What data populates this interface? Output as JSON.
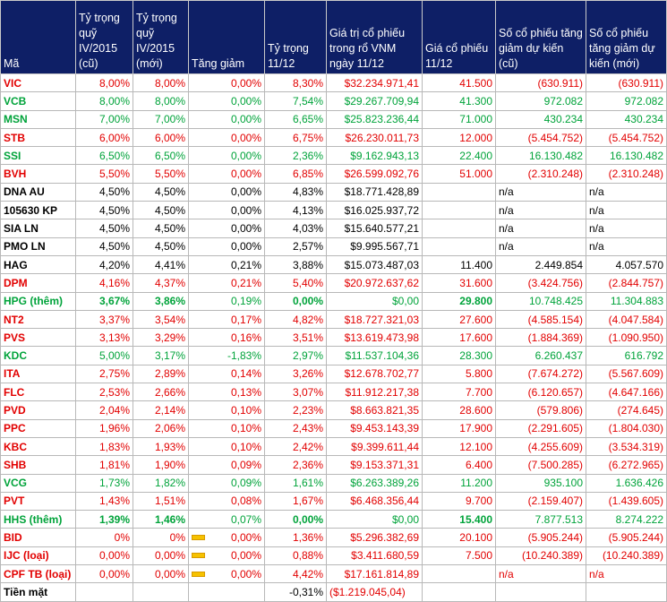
{
  "headers": [
    "Mã",
    "Tỷ trọng quỹ IV/2015 (cũ)",
    "Tỷ trọng quỹ IV/2015 (mới)",
    "Tăng giảm",
    "Tỷ trọng 11/12",
    "Giá trị cổ phiếu trong rổ VNM ngày 11/12",
    "Giá cổ phiếu 11/12",
    "Số cổ phiếu tăng giảm dự kiến (cũ)",
    "Số cổ phiếu tăng giảm dự kiến (mới)"
  ],
  "colors": {
    "header_bg": "#0e1f66",
    "red": "#e20000",
    "green": "#00a33a",
    "bar": "#f6c200"
  },
  "rows": [
    {
      "c": [
        "VIC",
        "8,00%",
        "8,00%",
        "0,00%",
        "8,30%",
        "$32.234.971,41",
        "41.500",
        "(630.911)",
        "(630.911)"
      ],
      "color": "red"
    },
    {
      "c": [
        "VCB",
        "8,00%",
        "8,00%",
        "0,00%",
        "7,54%",
        "$29.267.709,94",
        "41.300",
        "972.082",
        "972.082"
      ],
      "color": "green"
    },
    {
      "c": [
        "MSN",
        "7,00%",
        "7,00%",
        "0,00%",
        "6,65%",
        "$25.823.236,44",
        "71.000",
        "430.234",
        "430.234"
      ],
      "color": "green"
    },
    {
      "c": [
        "STB",
        "6,00%",
        "6,00%",
        "0,00%",
        "6,75%",
        "$26.230.011,73",
        "12.000",
        "(5.454.752)",
        "(5.454.752)"
      ],
      "color": "red"
    },
    {
      "c": [
        "SSI",
        "6,50%",
        "6,50%",
        "0,00%",
        "2,36%",
        "$9.162.943,13",
        "22.400",
        "16.130.482",
        "16.130.482"
      ],
      "color": "green"
    },
    {
      "c": [
        "BVH",
        "5,50%",
        "5,50%",
        "0,00%",
        "6,85%",
        "$26.599.092,76",
        "51.000",
        "(2.310.248)",
        "(2.310.248)"
      ],
      "color": "red"
    },
    {
      "c": [
        "DNA AU",
        "4,50%",
        "4,50%",
        "0,00%",
        "4,83%",
        "$18.771.428,89",
        "",
        "n/a",
        "n/a"
      ],
      "color": "black"
    },
    {
      "c": [
        "105630 KP",
        "4,50%",
        "4,50%",
        "0,00%",
        "4,13%",
        "$16.025.937,72",
        "",
        "n/a",
        "n/a"
      ],
      "color": "black"
    },
    {
      "c": [
        "SIA LN",
        "4,50%",
        "4,50%",
        "0,00%",
        "4,03%",
        "$15.640.577,21",
        "",
        "n/a",
        "n/a"
      ],
      "color": "black"
    },
    {
      "c": [
        "PMO LN",
        "4,50%",
        "4,50%",
        "0,00%",
        "2,57%",
        "$9.995.567,71",
        "",
        "n/a",
        "n/a"
      ],
      "color": "black"
    },
    {
      "c": [
        "HAG",
        "4,20%",
        "4,41%",
        "0,21%",
        "3,88%",
        "$15.073.487,03",
        "11.400",
        "2.449.854",
        "4.057.570"
      ],
      "color": "black"
    },
    {
      "c": [
        "DPM",
        "4,16%",
        "4,37%",
        "0,21%",
        "5,40%",
        "$20.972.637,62",
        "31.600",
        "(3.424.756)",
        "(2.844.757)"
      ],
      "color": "red"
    },
    {
      "c": [
        "HPG (thêm)",
        "3,67%",
        "3,86%",
        "0,19%",
        "0,00%",
        "$0,00",
        "29.800",
        "10.748.425",
        "11.304.883"
      ],
      "color": "green",
      "bold": [
        0,
        1,
        2,
        4,
        6
      ]
    },
    {
      "c": [
        "NT2",
        "3,37%",
        "3,54%",
        "0,17%",
        "4,82%",
        "$18.727.321,03",
        "27.600",
        "(4.585.154)",
        "(4.047.584)"
      ],
      "color": "red"
    },
    {
      "c": [
        "PVS",
        "3,13%",
        "3,29%",
        "0,16%",
        "3,51%",
        "$13.619.473,98",
        "17.600",
        "(1.884.369)",
        "(1.090.950)"
      ],
      "color": "red"
    },
    {
      "c": [
        "KDC",
        "5,00%",
        "3,17%",
        "-1,83%",
        "2,97%",
        "$11.537.104,36",
        "28.300",
        "6.260.437",
        "616.792"
      ],
      "color": "green"
    },
    {
      "c": [
        "ITA",
        "2,75%",
        "2,89%",
        "0,14%",
        "3,26%",
        "$12.678.702,77",
        "5.800",
        "(7.674.272)",
        "(5.567.609)"
      ],
      "color": "red"
    },
    {
      "c": [
        "FLC",
        "2,53%",
        "2,66%",
        "0,13%",
        "3,07%",
        "$11.912.217,38",
        "7.700",
        "(6.120.657)",
        "(4.647.166)"
      ],
      "color": "red"
    },
    {
      "c": [
        "PVD",
        "2,04%",
        "2,14%",
        "0,10%",
        "2,23%",
        "$8.663.821,35",
        "28.600",
        "(579.806)",
        "(274.645)"
      ],
      "color": "red"
    },
    {
      "c": [
        "PPC",
        "1,96%",
        "2,06%",
        "0,10%",
        "2,43%",
        "$9.453.143,39",
        "17.900",
        "(2.291.605)",
        "(1.804.030)"
      ],
      "color": "red"
    },
    {
      "c": [
        "KBC",
        "1,83%",
        "1,93%",
        "0,10%",
        "2,42%",
        "$9.399.611,44",
        "12.100",
        "(4.255.609)",
        "(3.534.319)"
      ],
      "color": "red"
    },
    {
      "c": [
        "SHB",
        "1,81%",
        "1,90%",
        "0,09%",
        "2,36%",
        "$9.153.371,31",
        "6.400",
        "(7.500.285)",
        "(6.272.965)"
      ],
      "color": "red"
    },
    {
      "c": [
        "VCG",
        "1,73%",
        "1,82%",
        "0,09%",
        "1,61%",
        "$6.263.389,26",
        "11.200",
        "935.100",
        "1.636.426"
      ],
      "color": "green"
    },
    {
      "c": [
        "PVT",
        "1,43%",
        "1,51%",
        "0,08%",
        "1,67%",
        "$6.468.356,44",
        "9.700",
        "(2.159.407)",
        "(1.439.605)"
      ],
      "color": "red"
    },
    {
      "c": [
        "HHS (thêm)",
        "1,39%",
        "1,46%",
        "0,07%",
        "0,00%",
        "$0,00",
        "15.400",
        "7.877.513",
        "8.274.222"
      ],
      "color": "green",
      "bold": [
        0,
        1,
        2,
        4,
        6
      ]
    },
    {
      "c": [
        "BID",
        "0%",
        "0%",
        "0,00%",
        "1,36%",
        "$5.296.382,69",
        "20.100",
        "(5.905.244)",
        "(5.905.244)"
      ],
      "color": "red",
      "bar": true
    },
    {
      "c": [
        "IJC (loại)",
        "0,00%",
        "0,00%",
        "0,00%",
        "0,88%",
        "$3.411.680,59",
        "7.500",
        "(10.240.389)",
        "(10.240.389)"
      ],
      "color": "red",
      "bar": true
    },
    {
      "c": [
        "CPF TB (loại)",
        "0,00%",
        "0,00%",
        "0,00%",
        "4,42%",
        "$17.161.814,89",
        "",
        "n/a",
        "n/a"
      ],
      "color": "red",
      "bar": true
    },
    {
      "c": [
        "Tiền mặt",
        "",
        "",
        "",
        "-0,31%",
        "($1.219.045,04)",
        "",
        "",
        ""
      ],
      "color": "black",
      "cash": true
    }
  ]
}
